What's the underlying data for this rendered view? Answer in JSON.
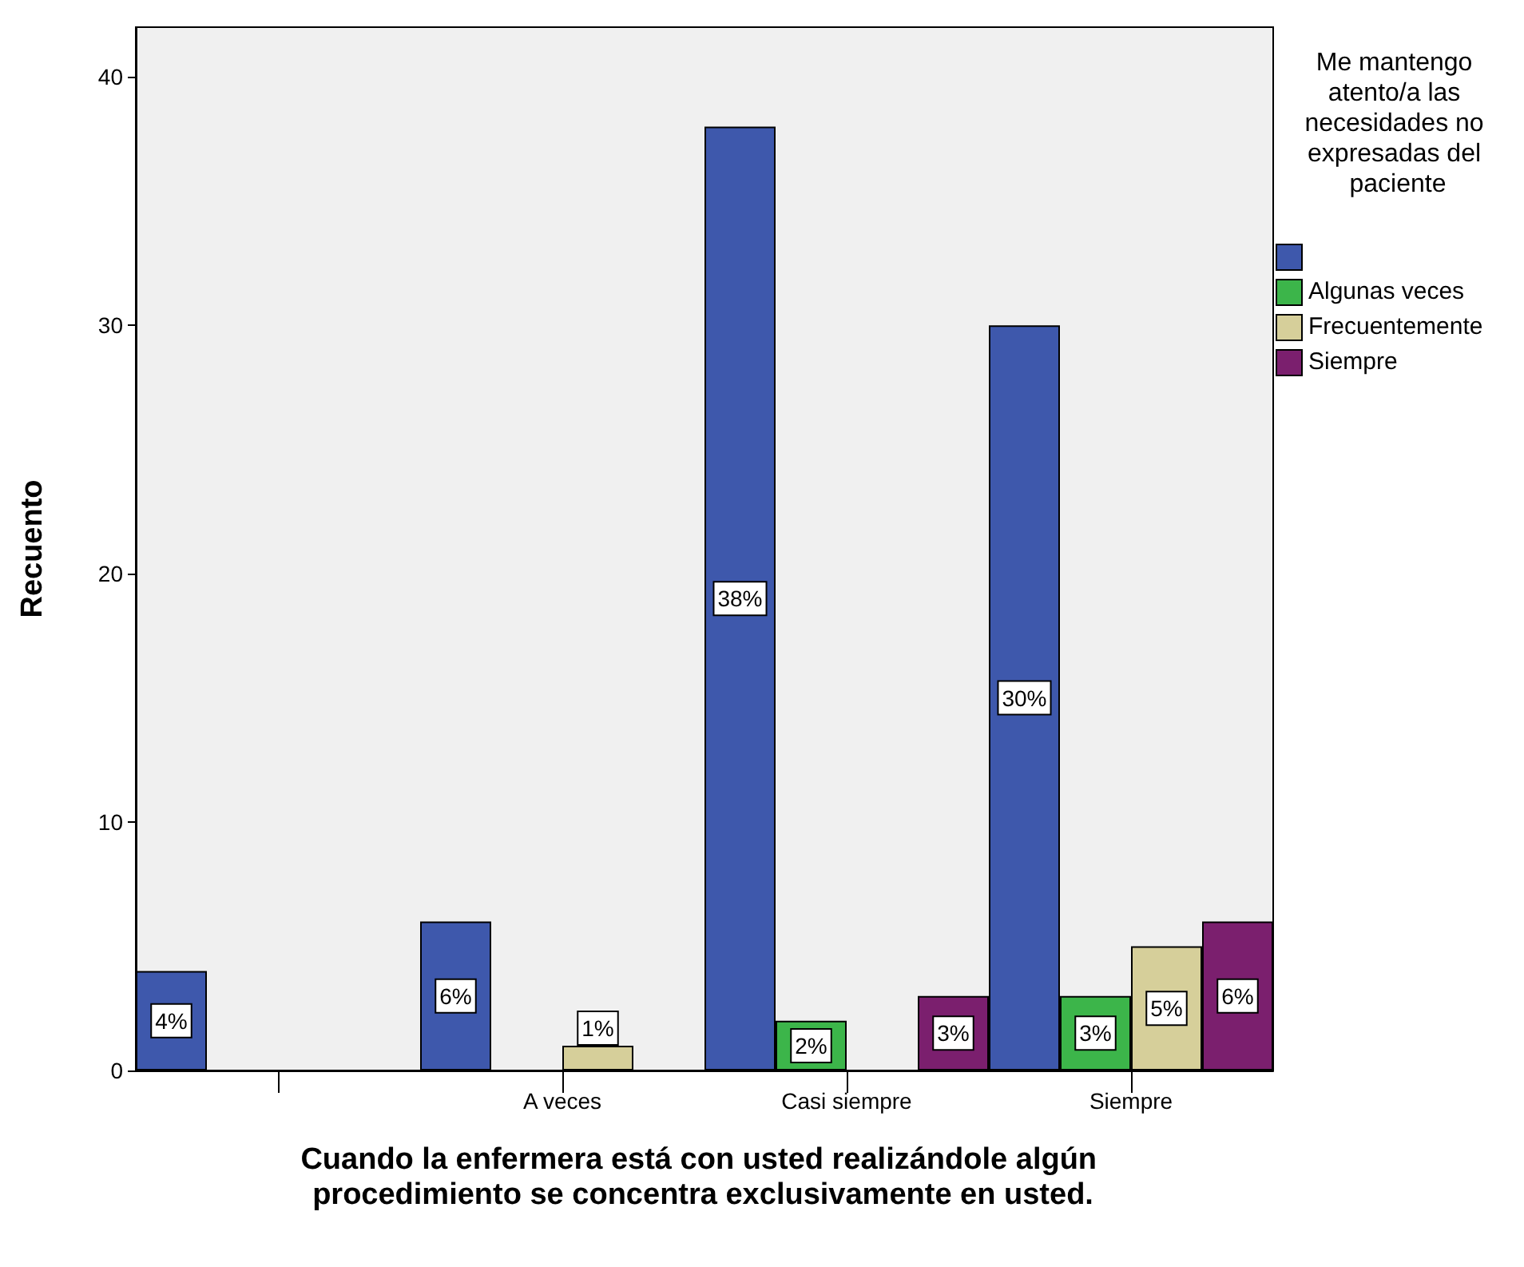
{
  "chart_data": {
    "type": "bar",
    "xlabel": "Cuando la enfermera está con usted realizándole algún procedimiento se concentra exclusivamente en usted.",
    "ylabel": "Recuento",
    "legend_title": "Me mantengo atento/a las necesidades no expresadas del paciente",
    "categories": [
      null,
      "A veces",
      "Casi siempre",
      "Siempre"
    ],
    "series": [
      {
        "color": "#3e58ac",
        "values": [
          4,
          6,
          38,
          30
        ],
        "value_labels": [
          "4%",
          "6%",
          "38%",
          "30%"
        ]
      },
      {
        "name": "Algunas veces",
        "color": "#3cb54a",
        "values": [
          null,
          null,
          2,
          3
        ],
        "value_labels": [
          null,
          null,
          "2%",
          "3%"
        ]
      },
      {
        "name": "Frecuentemente",
        "color": "#d6cf9a",
        "values": [
          null,
          1,
          null,
          5
        ],
        "value_labels": [
          null,
          "1%",
          null,
          "5%"
        ]
      },
      {
        "name": "Siempre",
        "color": "#7b1f6e",
        "values": [
          null,
          null,
          3,
          6
        ],
        "value_labels": [
          null,
          null,
          "3%",
          "6%"
        ]
      }
    ],
    "ylim": [
      0,
      42
    ],
    "yticks": [
      0,
      10,
      20,
      30,
      40
    ],
    "grid": false,
    "legend": "top right"
  }
}
